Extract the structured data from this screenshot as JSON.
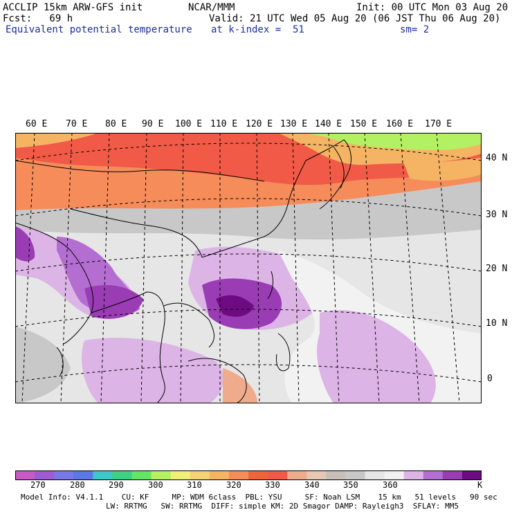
{
  "header": {
    "model_title": "ACCLIP 15km ARW-GFS init",
    "forecast": "Fcst:   69 h",
    "field_name": "Equivalent potential temperature",
    "center": "NCAR/MMM",
    "init": "Init: 00 UTC Mon 03 Aug 20",
    "valid": "Valid: 21 UTC Wed 05 Aug 20 (06 JST Thu 06 Aug 20)",
    "level": "at k-index =  51",
    "smoothing": "sm= 2"
  },
  "map": {
    "lon_labels": [
      "60 E",
      "70 E",
      "80 E",
      "90 E",
      "100 E",
      "110 E",
      "120 E",
      "130 E",
      "140 E",
      "150 E",
      "160 E",
      "170 E"
    ],
    "lat_labels": [
      "40 N",
      "30 N",
      "20 N",
      "10 N",
      "0"
    ]
  },
  "colorbar": {
    "colors": [
      "#c85ac8",
      "#a05ad2",
      "#7878e6",
      "#5a78e6",
      "#3cc8c8",
      "#3cd282",
      "#64e664",
      "#b4f064",
      "#f0f078",
      "#f5d278",
      "#f5b464",
      "#f58c5a",
      "#f0643c",
      "#f05a46",
      "#f0aa8c",
      "#e6c8b4",
      "#c8c0b8",
      "#c8c8c8",
      "#e6e6e6",
      "#f2f2f2",
      "#dcb4e6",
      "#b46ed2",
      "#9a3cb4",
      "#6e0a82"
    ],
    "tick_labels": [
      "270",
      "280",
      "290",
      "300",
      "310",
      "320",
      "330",
      "340",
      "350",
      "360"
    ],
    "units": "K"
  },
  "footer": {
    "line1": "Model Info: V4.1.1    CU: KF     MP: WDM 6class  PBL: YSU     SF: Noah LSM    15 km   51 levels   90 sec",
    "line2": "LW: RRTMG   SW: RRTMG  DIFF: simple KM: 2D Smagor DAMP: Rayleigh3  SFLAY: MM5"
  }
}
